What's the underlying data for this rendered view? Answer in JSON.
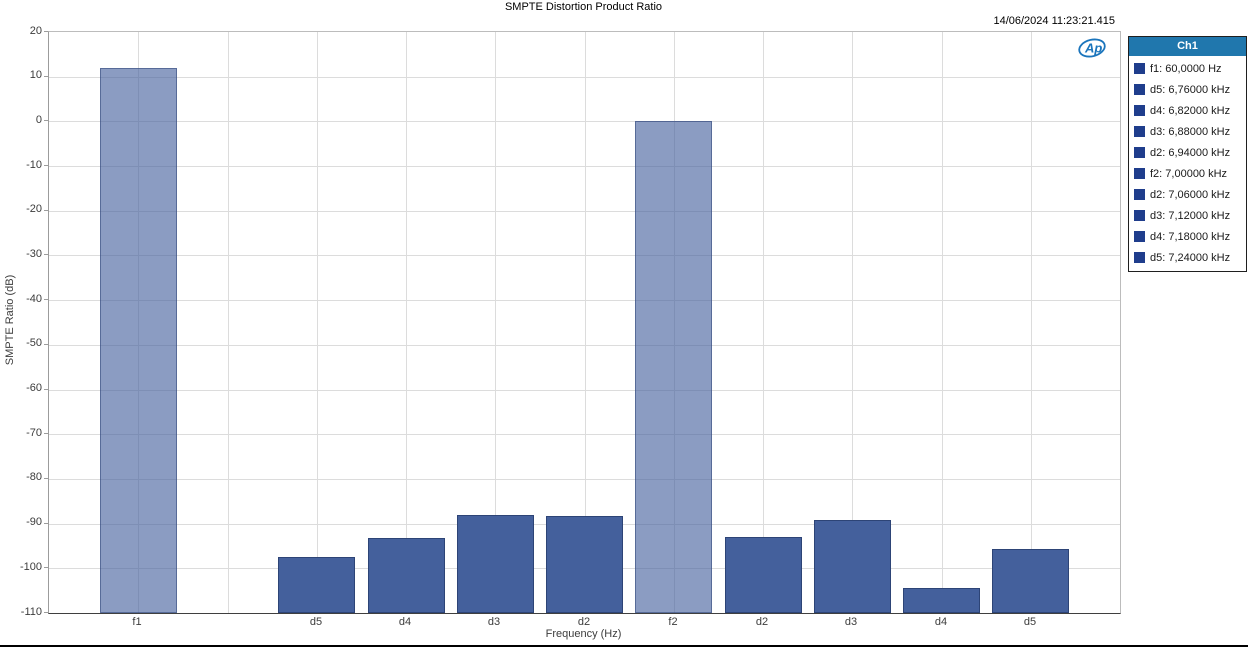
{
  "chart_data": {
    "type": "bar",
    "title": "SMPTE Distortion Product Ratio",
    "timestamp": "14/06/2024 11:23:21.415",
    "xlabel": "Frequency (Hz)",
    "ylabel": "SMPTE Ratio (dB)",
    "ylim": [
      -110,
      20
    ],
    "ytick_step": 10,
    "slot_count": 12,
    "grid": true,
    "bars": [
      {
        "label": "f1",
        "slot": 1,
        "value": 12.0,
        "kind": "fundamental"
      },
      {
        "label": "d5",
        "slot": 3,
        "value": -97.5,
        "kind": "distortion"
      },
      {
        "label": "d4",
        "slot": 4,
        "value": -93.2,
        "kind": "distortion"
      },
      {
        "label": "d3",
        "slot": 5,
        "value": -88.0,
        "kind": "distortion"
      },
      {
        "label": "d2",
        "slot": 6,
        "value": -88.2,
        "kind": "distortion"
      },
      {
        "label": "f2",
        "slot": 7,
        "value": 0.0,
        "kind": "fundamental"
      },
      {
        "label": "d2",
        "slot": 8,
        "value": -93.0,
        "kind": "distortion"
      },
      {
        "label": "d3",
        "slot": 9,
        "value": -89.3,
        "kind": "distortion"
      },
      {
        "label": "d4",
        "slot": 10,
        "value": -104.4,
        "kind": "distortion"
      },
      {
        "label": "d5",
        "slot": 11,
        "value": -95.7,
        "kind": "distortion"
      }
    ],
    "legend": {
      "position": "right",
      "header": "Ch1",
      "entries": [
        "f1: 60,0000 Hz",
        "d5: 6,76000 kHz",
        "d4: 6,82000 kHz",
        "d3: 6,88000 kHz",
        "d2: 6,94000 kHz",
        "f2: 7,00000 kHz",
        "d2: 7,06000 kHz",
        "d3: 7,12000 kHz",
        "d4: 7,18000 kHz",
        "d5: 7,24000 kHz"
      ]
    },
    "colors": {
      "fundamental_fill": "rgba(68,96,156,0.62)",
      "fundamental_border": "rgba(45,68,118,0.55)",
      "distortion_fill": "#44609c",
      "distortion_border": "#2d4476",
      "legend_header_bg": "#2077ad",
      "legend_swatch": "#1f3d8c",
      "ap_logo_blue": "#1b75bc",
      "gridline": "#dcdcdc"
    },
    "ap_logo_text": "Ap"
  }
}
